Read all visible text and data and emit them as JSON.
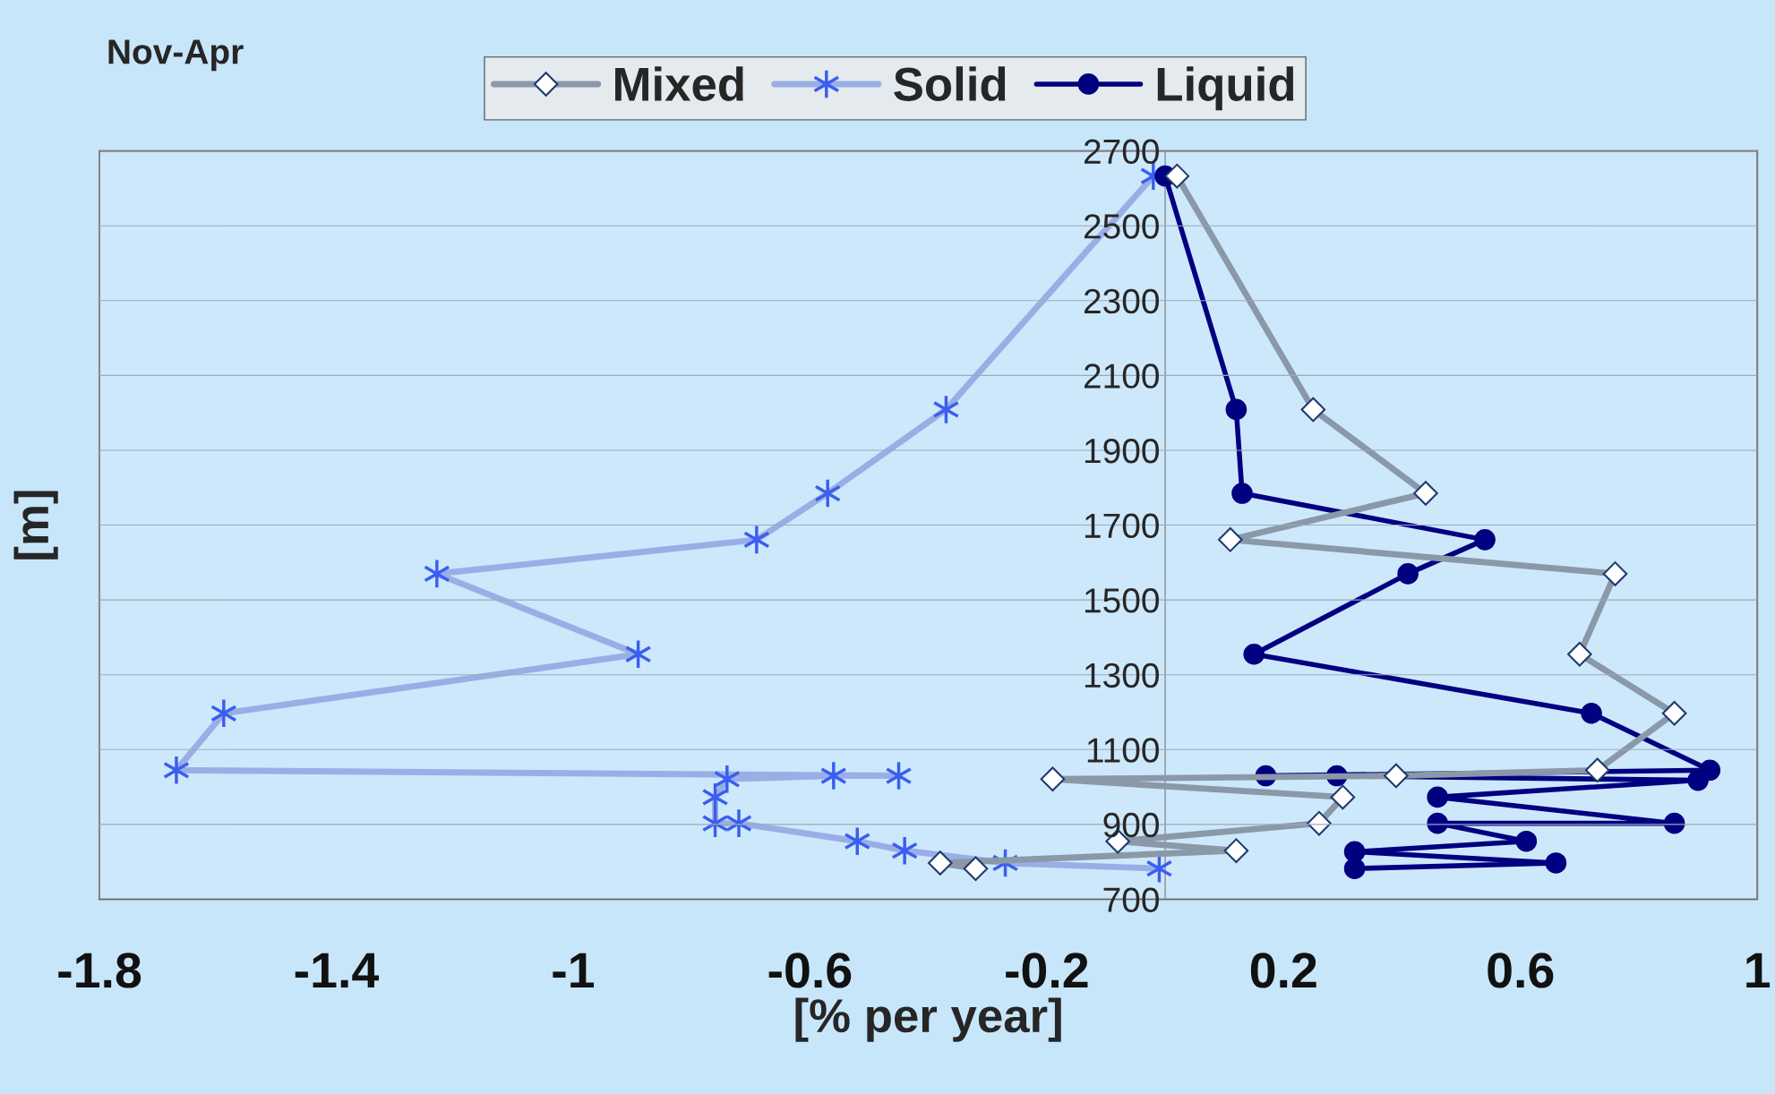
{
  "chart_data": {
    "type": "line",
    "title": "Nov-Apr",
    "xlabel": "[% per year]",
    "ylabel": "[m]",
    "xlim": [
      -1.8,
      1
    ],
    "xticks": [
      {
        "value": -1.8,
        "label": "-1.8"
      },
      {
        "value": -1.4,
        "label": "-1.4"
      },
      {
        "value": -1,
        "label": "-1"
      },
      {
        "value": -0.6,
        "label": "-0.6"
      },
      {
        "value": -0.2,
        "label": "-0.2"
      },
      0.2,
      0.6,
      1
    ],
    "ylim": [
      700,
      2700
    ],
    "yticks": [
      700,
      900,
      1100,
      1300,
      1500,
      1700,
      1900,
      2100,
      2300,
      2500,
      2700
    ],
    "grid": "y",
    "legend": "top",
    "line_style": "solid",
    "series": [
      {
        "name": "Mixed",
        "color": "#8a98a8",
        "marker": "diamond",
        "x": [
          0.02,
          0.25,
          0.44,
          0.11,
          0.76,
          0.7,
          0.86,
          0.73,
          0.39,
          0.16,
          -0.19,
          0.3,
          0.26,
          -0.08,
          0.12,
          -0.38,
          -0.32
        ],
        "values": [
          2633,
          2009,
          1785,
          1661,
          1570,
          1355,
          1197,
          1045,
          1030,
          null,
          1021,
          973,
          903,
          855,
          830,
          797,
          782
        ]
      },
      {
        "name": "Solid",
        "color": "#9aaee6",
        "marker": "cross",
        "x": [
          -0.02,
          -0.37,
          -0.57,
          -0.69,
          -1.23,
          -0.89,
          -1.59,
          -1.67,
          -0.45,
          -0.56,
          -0.74,
          -0.76,
          -0.76,
          -0.72,
          -0.52,
          -0.44,
          -0.27,
          -0.01
        ],
        "values": [
          2633,
          2009,
          1785,
          1661,
          1570,
          1355,
          1197,
          1045,
          1030,
          1030,
          1021,
          973,
          903,
          903,
          855,
          830,
          797,
          782
        ]
      },
      {
        "name": "Liquid",
        "color": "#000080",
        "marker": "circle",
        "x": [
          0,
          0.12,
          0.13,
          0.54,
          0.41,
          0.15,
          0.72,
          0.92,
          0.17,
          0.29,
          0.9,
          0.46,
          0.86,
          0.46,
          0.61,
          0.32,
          0.66,
          0.32
        ],
        "values": [
          2633,
          2009,
          1785,
          1661,
          1570,
          1355,
          1197,
          1045,
          1030,
          1030,
          1018,
          973,
          903,
          903,
          855,
          827,
          797,
          782
        ]
      }
    ]
  }
}
